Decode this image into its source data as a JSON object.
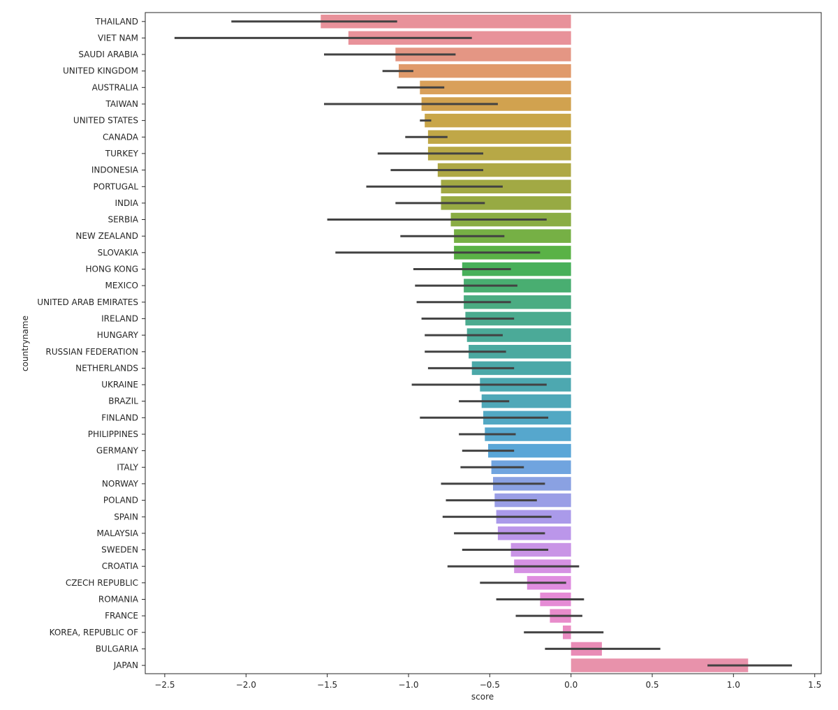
{
  "chart_data": {
    "type": "bar",
    "orientation": "horizontal",
    "xlabel": "score",
    "ylabel": "countryname",
    "xlim": [
      -2.62,
      1.54
    ],
    "xticks": [
      -2.5,
      -2.0,
      -1.5,
      -1.0,
      -0.5,
      0.0,
      0.5,
      1.0,
      1.5
    ],
    "xtick_labels": [
      "−2.5",
      "−2.0",
      "−1.5",
      "−1.0",
      "−0.5",
      "0.0",
      "0.5",
      "1.0",
      "1.5"
    ],
    "grid": false,
    "error_bars": "confidence interval",
    "categories": [
      "THAILAND",
      "VIET NAM",
      "SAUDI ARABIA",
      "UNITED KINGDOM",
      "AUSTRALIA",
      "TAIWAN",
      "UNITED STATES",
      "CANADA",
      "TURKEY",
      "INDONESIA",
      "PORTUGAL",
      "INDIA",
      "SERBIA",
      "NEW ZEALAND",
      "SLOVAKIA",
      "HONG KONG",
      "MEXICO",
      "UNITED ARAB EMIRATES",
      "IRELAND",
      "HUNGARY",
      "RUSSIAN FEDERATION",
      "NETHERLANDS",
      "UKRAINE",
      "BRAZIL",
      "FINLAND",
      "PHILIPPINES",
      "GERMANY",
      "ITALY",
      "NORWAY",
      "POLAND",
      "SPAIN",
      "MALAYSIA",
      "SWEDEN",
      "CROATIA",
      "CZECH REPUBLIC",
      "ROMANIA",
      "FRANCE",
      "KOREA, REPUBLIC OF",
      "BULGARIA",
      "JAPAN"
    ],
    "values": [
      -1.54,
      -1.37,
      -1.08,
      -1.06,
      -0.93,
      -0.92,
      -0.9,
      -0.88,
      -0.88,
      -0.82,
      -0.8,
      -0.8,
      -0.74,
      -0.72,
      -0.72,
      -0.67,
      -0.66,
      -0.66,
      -0.65,
      -0.64,
      -0.63,
      -0.61,
      -0.56,
      -0.55,
      -0.54,
      -0.53,
      -0.51,
      -0.49,
      -0.48,
      -0.47,
      -0.46,
      -0.45,
      -0.37,
      -0.35,
      -0.27,
      -0.19,
      -0.13,
      -0.05,
      0.19,
      1.09
    ],
    "ci_low": [
      -2.09,
      -2.44,
      -1.52,
      -1.16,
      -1.07,
      -1.52,
      -0.93,
      -1.02,
      -1.19,
      -1.11,
      -1.26,
      -1.08,
      -1.5,
      -1.05,
      -1.45,
      -0.97,
      -0.96,
      -0.95,
      -0.92,
      -0.9,
      -0.9,
      -0.88,
      -0.98,
      -0.69,
      -0.93,
      -0.69,
      -0.67,
      -0.68,
      -0.8,
      -0.77,
      -0.79,
      -0.72,
      -0.67,
      -0.76,
      -0.56,
      -0.46,
      -0.34,
      -0.29,
      -0.16,
      0.84
    ],
    "ci_high": [
      -1.07,
      -0.61,
      -0.71,
      -0.97,
      -0.78,
      -0.45,
      -0.86,
      -0.76,
      -0.54,
      -0.54,
      -0.42,
      -0.53,
      -0.15,
      -0.41,
      -0.19,
      -0.37,
      -0.33,
      -0.37,
      -0.35,
      -0.42,
      -0.4,
      -0.35,
      -0.15,
      -0.38,
      -0.14,
      -0.34,
      -0.35,
      -0.29,
      -0.16,
      -0.21,
      -0.12,
      -0.16,
      -0.14,
      0.05,
      -0.03,
      0.08,
      0.07,
      0.2,
      0.55,
      1.36
    ],
    "colors": [
      "#e8919a",
      "#e8929a",
      "#e49684",
      "#e09a6b",
      "#d9a05a",
      "#d1a24f",
      "#c9a649",
      "#c0a747",
      "#b7a846",
      "#aea845",
      "#a2a944",
      "#97aa43",
      "#8aad44",
      "#76b045",
      "#5ab246",
      "#48b05a",
      "#49ae71",
      "#4bac82",
      "#4bab8f",
      "#4baa98",
      "#4ba9a0",
      "#4ba8a8",
      "#4da8b0",
      "#4fa8b8",
      "#52a8c3",
      "#56a7cd",
      "#5aa6d7",
      "#70a4df",
      "#8aa1e2",
      "#9a9ee6",
      "#aa9aea",
      "#bb96ea",
      "#c994e6",
      "#d591e3",
      "#df8ddf",
      "#e58bd5",
      "#e88ccb",
      "#ea8cc2",
      "#e98cb6",
      "#e892ab"
    ]
  }
}
